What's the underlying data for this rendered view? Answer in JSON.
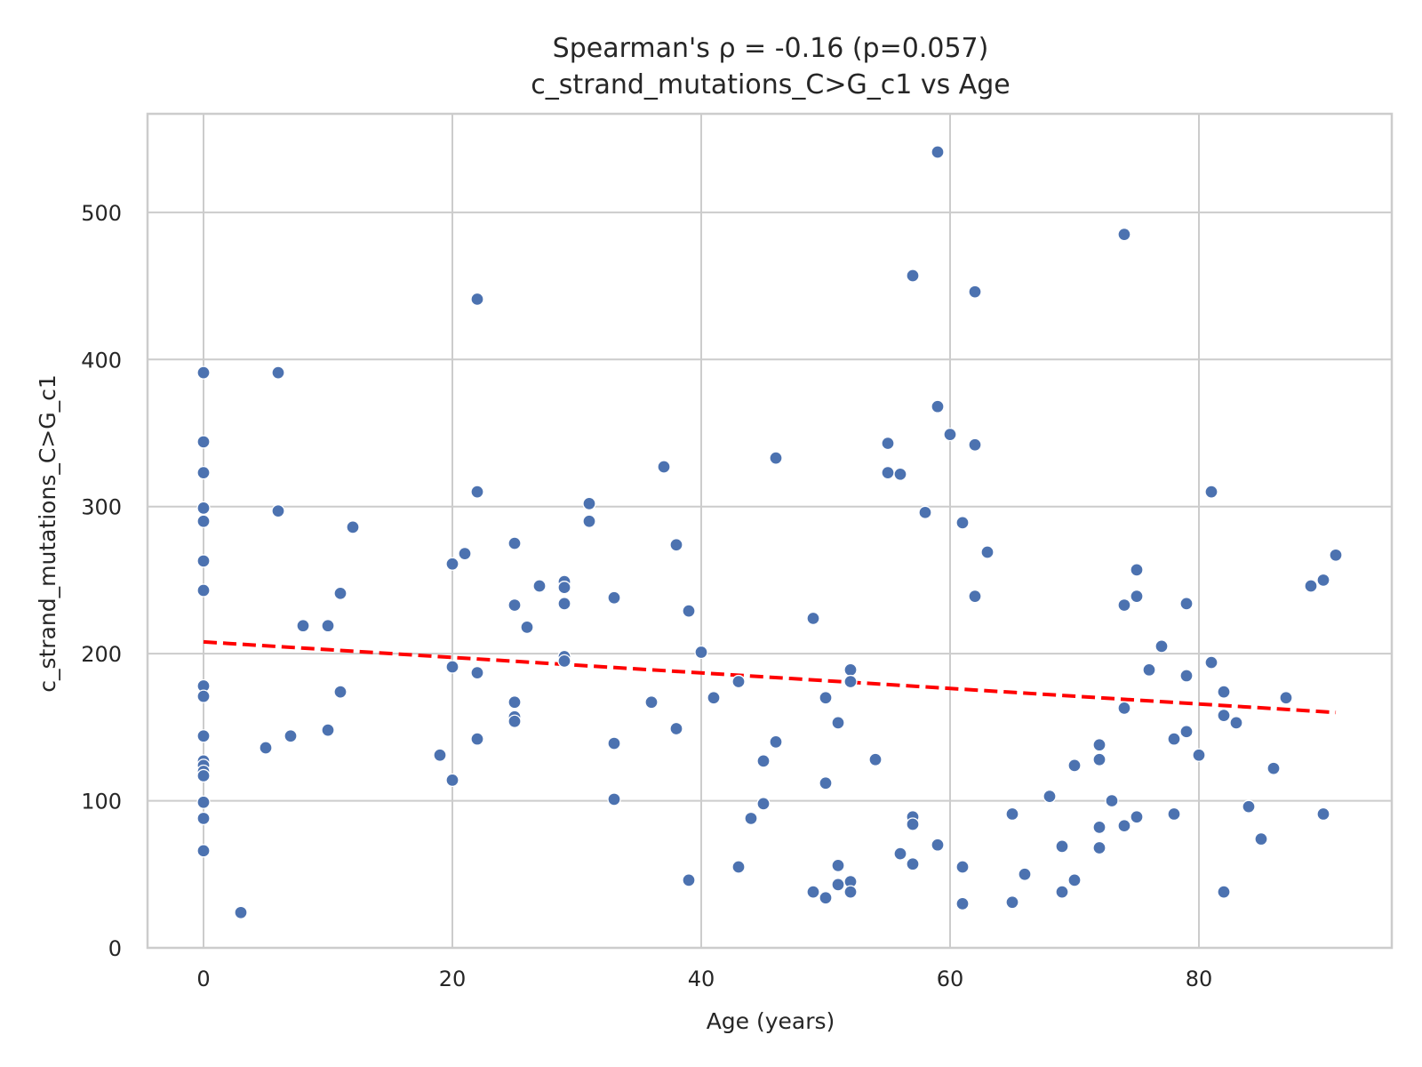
{
  "chart_data": {
    "type": "scatter",
    "title": "Spearman's ρ = -0.16 (p=0.057)",
    "subtitle": "c_strand_mutations_C>G_c1 vs Age",
    "xlabel": "Age (years)",
    "ylabel": "c_strand_mutations_C>G_c1",
    "xlim": [
      -4.5,
      95.5
    ],
    "ylim": [
      0,
      567
    ],
    "x_ticks": [
      0,
      20,
      40,
      60,
      80
    ],
    "y_ticks": [
      0,
      100,
      200,
      300,
      400,
      500
    ],
    "grid": true,
    "colors": {
      "points": "#4c72b0",
      "trend": "#ff0000",
      "grid": "#cccccc",
      "spine": "#cccccc"
    },
    "trend_line": {
      "style": "dashed",
      "x": [
        0,
        91
      ],
      "y": [
        208,
        160
      ]
    },
    "points": [
      [
        0,
        391
      ],
      [
        0,
        344
      ],
      [
        0,
        323
      ],
      [
        0,
        299
      ],
      [
        0,
        290
      ],
      [
        0,
        263
      ],
      [
        0,
        243
      ],
      [
        0,
        178
      ],
      [
        0,
        171
      ],
      [
        0,
        144
      ],
      [
        0,
        127
      ],
      [
        0,
        124
      ],
      [
        0,
        120
      ],
      [
        0,
        117
      ],
      [
        0,
        99
      ],
      [
        0,
        88
      ],
      [
        0,
        66
      ],
      [
        3,
        24
      ],
      [
        5,
        136
      ],
      [
        6,
        391
      ],
      [
        6,
        297
      ],
      [
        7,
        144
      ],
      [
        8,
        219
      ],
      [
        10,
        219
      ],
      [
        10,
        148
      ],
      [
        11,
        241
      ],
      [
        11,
        174
      ],
      [
        12,
        286
      ],
      [
        19,
        131
      ],
      [
        20,
        261
      ],
      [
        20,
        191
      ],
      [
        20,
        114
      ],
      [
        21,
        268
      ],
      [
        22,
        441
      ],
      [
        22,
        310
      ],
      [
        22,
        187
      ],
      [
        22,
        142
      ],
      [
        25,
        275
      ],
      [
        25,
        233
      ],
      [
        25,
        167
      ],
      [
        25,
        157
      ],
      [
        25,
        154
      ],
      [
        26,
        218
      ],
      [
        27,
        246
      ],
      [
        29,
        249
      ],
      [
        29,
        245
      ],
      [
        29,
        234
      ],
      [
        29,
        198
      ],
      [
        29,
        195
      ],
      [
        31,
        302
      ],
      [
        31,
        290
      ],
      [
        33,
        238
      ],
      [
        33,
        139
      ],
      [
        33,
        101
      ],
      [
        36,
        167
      ],
      [
        37,
        327
      ],
      [
        38,
        274
      ],
      [
        38,
        149
      ],
      [
        39,
        229
      ],
      [
        39,
        46
      ],
      [
        40,
        201
      ],
      [
        41,
        170
      ],
      [
        43,
        181
      ],
      [
        43,
        55
      ],
      [
        44,
        88
      ],
      [
        45,
        127
      ],
      [
        45,
        98
      ],
      [
        46,
        333
      ],
      [
        46,
        140
      ],
      [
        49,
        224
      ],
      [
        49,
        38
      ],
      [
        50,
        170
      ],
      [
        50,
        112
      ],
      [
        50,
        34
      ],
      [
        51,
        153
      ],
      [
        51,
        56
      ],
      [
        51,
        43
      ],
      [
        52,
        189
      ],
      [
        52,
        181
      ],
      [
        52,
        45
      ],
      [
        52,
        38
      ],
      [
        54,
        128
      ],
      [
        55,
        343
      ],
      [
        55,
        323
      ],
      [
        56,
        322
      ],
      [
        56,
        64
      ],
      [
        57,
        457
      ],
      [
        57,
        89
      ],
      [
        57,
        84
      ],
      [
        57,
        57
      ],
      [
        58,
        296
      ],
      [
        59,
        541
      ],
      [
        59,
        368
      ],
      [
        59,
        70
      ],
      [
        60,
        349
      ],
      [
        61,
        289
      ],
      [
        61,
        55
      ],
      [
        61,
        30
      ],
      [
        62,
        446
      ],
      [
        62,
        342
      ],
      [
        62,
        239
      ],
      [
        63,
        269
      ],
      [
        65,
        91
      ],
      [
        65,
        31
      ],
      [
        66,
        50
      ],
      [
        68,
        103
      ],
      [
        69,
        69
      ],
      [
        69,
        38
      ],
      [
        70,
        124
      ],
      [
        70,
        46
      ],
      [
        72,
        138
      ],
      [
        72,
        128
      ],
      [
        72,
        82
      ],
      [
        72,
        68
      ],
      [
        73,
        100
      ],
      [
        74,
        485
      ],
      [
        74,
        233
      ],
      [
        74,
        163
      ],
      [
        74,
        83
      ],
      [
        75,
        257
      ],
      [
        75,
        239
      ],
      [
        75,
        89
      ],
      [
        76,
        189
      ],
      [
        77,
        205
      ],
      [
        78,
        142
      ],
      [
        78,
        91
      ],
      [
        79,
        234
      ],
      [
        79,
        185
      ],
      [
        79,
        147
      ],
      [
        80,
        131
      ],
      [
        81,
        310
      ],
      [
        81,
        194
      ],
      [
        82,
        174
      ],
      [
        82,
        158
      ],
      [
        82,
        38
      ],
      [
        83,
        153
      ],
      [
        84,
        96
      ],
      [
        85,
        74
      ],
      [
        86,
        122
      ],
      [
        87,
        170
      ],
      [
        89,
        246
      ],
      [
        90,
        250
      ],
      [
        90,
        91
      ],
      [
        91,
        267
      ]
    ]
  }
}
